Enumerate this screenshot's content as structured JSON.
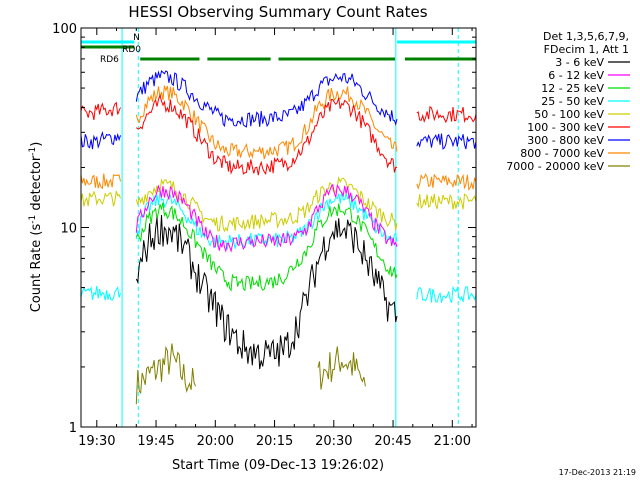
{
  "chart_data": {
    "type": "line",
    "title": "HESSI Observing Summary Count Rates",
    "xlabel": "Start Time (09-Dec-13 19:26:02)",
    "ylabel": "Count Rate (s⁻¹ detector⁻¹)",
    "ylabel_parts": [
      "Count Rate (s",
      "-1",
      " detector",
      "-1",
      ")"
    ],
    "x_units": "minutes after 19:26:02",
    "xlim": [
      0,
      100
    ],
    "ylim": [
      1,
      100
    ],
    "yscale": "log",
    "x_ticks": [
      {
        "x": 4,
        "label": "19:30"
      },
      {
        "x": 19,
        "label": "19:45"
      },
      {
        "x": 34,
        "label": "20:00"
      },
      {
        "x": 49,
        "label": "20:15"
      },
      {
        "x": 64,
        "label": "20:30"
      },
      {
        "x": 79,
        "label": "20:45"
      },
      {
        "x": 94,
        "label": "21:00"
      }
    ],
    "y_ticks": [
      {
        "y": 1,
        "label": "1"
      },
      {
        "y": 10,
        "label": "10"
      },
      {
        "y": 100,
        "label": "100"
      }
    ],
    "legend": {
      "header": [
        "Det 1,3,5,6,7,9,",
        "FDecim 1, Att 1"
      ],
      "placement": "right"
    },
    "series": [
      {
        "name": "3 - 6 keV",
        "color": "#000000",
        "x": [
          0,
          4,
          10,
          11,
          14,
          17,
          20,
          23,
          26,
          29,
          32,
          34,
          36,
          38,
          40,
          43,
          46,
          49,
          52,
          54,
          57,
          60,
          63,
          66,
          69,
          72,
          75,
          78,
          80,
          82,
          85,
          88,
          92,
          96,
          100
        ],
        "y": [
          null,
          null,
          null,
          null,
          5.5,
          8.5,
          10,
          9.5,
          8,
          6,
          4.5,
          4,
          3.3,
          3,
          2.6,
          2.4,
          2.3,
          2.3,
          2.5,
          3,
          4.3,
          6.8,
          9.5,
          10,
          9,
          7,
          5.2,
          4,
          3.6,
          null,
          null,
          null,
          null,
          null,
          null
        ]
      },
      {
        "name": "6 - 12 keV",
        "color": "#ff00ff",
        "x": [
          0,
          4,
          10,
          11,
          14,
          17,
          20,
          23,
          26,
          29,
          32,
          34,
          36,
          38,
          40,
          43,
          46,
          49,
          52,
          54,
          57,
          60,
          63,
          66,
          69,
          72,
          75,
          78,
          80,
          82,
          85,
          88,
          92,
          96,
          100
        ],
        "y": [
          null,
          null,
          null,
          null,
          10,
          13.5,
          15.5,
          15,
          13.5,
          11,
          9,
          8.5,
          8.3,
          8.3,
          8.4,
          8.5,
          8.5,
          8.5,
          8.6,
          8.8,
          9.8,
          12.5,
          15,
          15.5,
          14.5,
          12,
          10,
          8.5,
          8,
          null,
          null,
          null,
          null,
          null,
          null
        ]
      },
      {
        "name": "12 - 25 keV",
        "color": "#00dd00",
        "x": [
          0,
          4,
          10,
          11,
          14,
          17,
          20,
          23,
          26,
          29,
          32,
          34,
          36,
          38,
          40,
          43,
          46,
          49,
          52,
          54,
          57,
          60,
          63,
          66,
          69,
          72,
          75,
          78,
          80,
          82,
          85,
          88,
          92,
          96,
          100
        ],
        "y": [
          null,
          null,
          null,
          null,
          8.5,
          11,
          12.5,
          12,
          10.5,
          8.5,
          7,
          6.2,
          5.6,
          5.3,
          5.2,
          5.2,
          5.3,
          5.4,
          5.8,
          6.5,
          7.6,
          10,
          12,
          12.5,
          11.5,
          9.5,
          7.6,
          6.2,
          5.8,
          null,
          null,
          null,
          null,
          null,
          null
        ]
      },
      {
        "name": "25 - 50 keV",
        "color": "#00ffff",
        "x": [
          0,
          4,
          10,
          11,
          14,
          17,
          20,
          23,
          26,
          29,
          32,
          34,
          36,
          38,
          40,
          43,
          46,
          49,
          52,
          54,
          57,
          60,
          63,
          66,
          69,
          72,
          75,
          78,
          80,
          82,
          85,
          88,
          92,
          96,
          100
        ],
        "y": [
          4.6,
          4.7,
          4.7,
          null,
          9.5,
          12.5,
          14,
          13.5,
          12,
          10,
          8.8,
          8.5,
          8.5,
          8.5,
          8.5,
          8.6,
          8.6,
          8.6,
          8.7,
          8.9,
          9.8,
          12,
          13.8,
          14,
          13.2,
          11.5,
          9.8,
          8.8,
          8.5,
          null,
          4.6,
          4.6,
          4.6,
          4.6,
          4.6
        ]
      },
      {
        "name": "50 - 100 keV",
        "color": "#cccc00",
        "x": [
          0,
          4,
          10,
          11,
          14,
          17,
          20,
          23,
          26,
          29,
          32,
          34,
          36,
          38,
          40,
          43,
          46,
          49,
          52,
          54,
          57,
          60,
          63,
          66,
          69,
          72,
          75,
          78,
          80,
          82,
          85,
          88,
          92,
          96,
          100
        ],
        "y": [
          13.5,
          14,
          14,
          null,
          13,
          15,
          16.5,
          16,
          14.5,
          12.5,
          11,
          10.5,
          10.5,
          10.5,
          10.5,
          10.7,
          10.8,
          10.9,
          11,
          11.3,
          12.2,
          14.5,
          16,
          16.5,
          15.5,
          13.5,
          12,
          11,
          10.5,
          null,
          13.5,
          13.5,
          13.5,
          13.5,
          13.5
        ]
      },
      {
        "name": "100 - 300 keV",
        "color": "#ff0000",
        "x": [
          0,
          4,
          10,
          11,
          14,
          17,
          20,
          23,
          26,
          29,
          32,
          34,
          36,
          38,
          40,
          43,
          46,
          49,
          52,
          54,
          57,
          60,
          63,
          66,
          69,
          72,
          75,
          78,
          80,
          82,
          85,
          88,
          92,
          96,
          100
        ],
        "y": [
          37,
          38,
          40,
          null,
          31,
          37,
          42,
          41,
          36,
          30,
          25,
          22,
          21,
          20,
          20,
          20,
          20,
          20.5,
          21,
          22.5,
          26,
          34,
          40,
          42,
          39,
          32,
          26,
          21.5,
          20,
          null,
          37,
          37,
          37,
          37,
          37
        ]
      },
      {
        "name": "300 - 800 keV",
        "color": "#0000ff",
        "x": [
          0,
          4,
          10,
          11,
          14,
          17,
          20,
          23,
          26,
          29,
          32,
          34,
          36,
          38,
          40,
          43,
          46,
          49,
          52,
          54,
          57,
          60,
          63,
          66,
          69,
          72,
          75,
          78,
          80,
          82,
          85,
          88,
          92,
          96,
          100
        ],
        "y": [
          27,
          27,
          29,
          null,
          45,
          53,
          57,
          56,
          51,
          45,
          40,
          37,
          35,
          35,
          35,
          35,
          35,
          35.5,
          36,
          37.5,
          42,
          50,
          55,
          57,
          54,
          47,
          41,
          37,
          35,
          null,
          27,
          27,
          27,
          27,
          27
        ]
      },
      {
        "name": "800 - 7000 keV",
        "color": "#ff8800",
        "x": [
          0,
          4,
          10,
          11,
          14,
          17,
          20,
          23,
          26,
          29,
          32,
          34,
          36,
          38,
          40,
          43,
          46,
          49,
          52,
          54,
          57,
          60,
          63,
          66,
          69,
          72,
          75,
          78,
          80,
          82,
          85,
          88,
          92,
          96,
          100
        ],
        "y": [
          17,
          17,
          17,
          null,
          35,
          43,
          48,
          47,
          42,
          35,
          29,
          26,
          24.5,
          24,
          24,
          24,
          24,
          24.5,
          25,
          26.5,
          31,
          40,
          46,
          48,
          45,
          38,
          31,
          26,
          24,
          null,
          17,
          17,
          17,
          17,
          17
        ]
      },
      {
        "name": "7000 - 20000 keV",
        "color": "#808000",
        "x": [
          0,
          4,
          10,
          11,
          14,
          17,
          20,
          23,
          26,
          29,
          32,
          34,
          36,
          38,
          40,
          43,
          46,
          49,
          52,
          54,
          57,
          60,
          63,
          66,
          69,
          72,
          75,
          78,
          80,
          82,
          85,
          88,
          92,
          96,
          100
        ],
        "y": [
          null,
          null,
          null,
          null,
          1.6,
          1.8,
          2,
          2.2,
          1.8,
          1.6,
          null,
          null,
          null,
          null,
          null,
          null,
          null,
          null,
          null,
          null,
          null,
          1.8,
          2,
          2.2,
          2,
          1.6,
          null,
          null,
          null,
          null,
          null,
          null,
          null,
          null,
          null
        ]
      }
    ],
    "annotations": [
      {
        "label": "N",
        "color": "#00ffff",
        "ranges": [
          [
            0,
            13.5
          ],
          [
            80,
            100
          ]
        ]
      },
      {
        "label": "RD0",
        "color": "#008000",
        "ranges": [
          [
            0,
            13.5
          ]
        ]
      },
      {
        "label": "RD6",
        "color": "#008000",
        "ranges": [
          [
            15,
            30
          ],
          [
            32,
            48
          ],
          [
            50,
            79.5
          ],
          [
            82,
            100
          ]
        ]
      }
    ],
    "vertical_lines": [
      {
        "x": 10.4,
        "color": "#00ffff",
        "style": "solid"
      },
      {
        "x": 14.5,
        "color": "#00ffff",
        "style": "dashed"
      },
      {
        "x": 79.7,
        "color": "#00ffff",
        "style": "solid"
      },
      {
        "x": 95.5,
        "color": "#00ffff",
        "style": "dashed"
      }
    ],
    "grid": false
  },
  "footer": {
    "timestamp": "17-Dec-2013 21:19"
  }
}
